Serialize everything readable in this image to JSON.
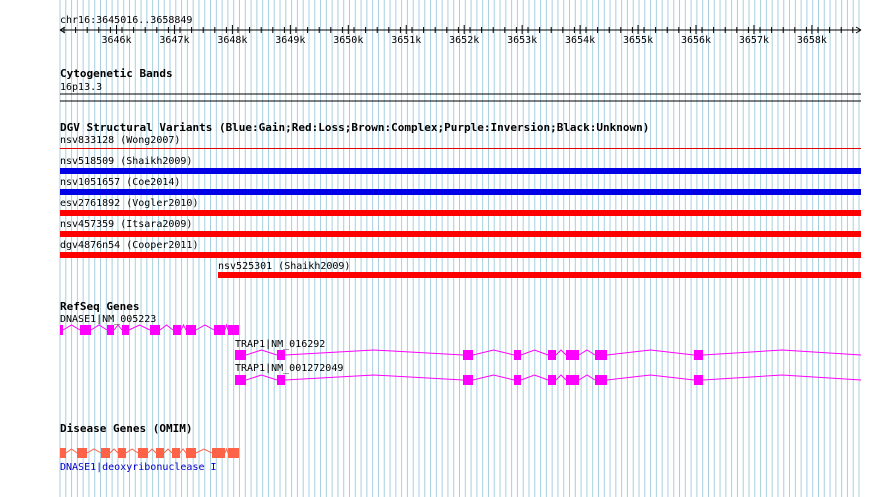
{
  "ruler": {
    "range_label": "chr16:3645016..3658849",
    "ticks": [
      "3646k",
      "3647k",
      "3648k",
      "3649k",
      "3650k",
      "3651k",
      "3652k",
      "3653k",
      "3654k",
      "3655k",
      "3656k",
      "3657k",
      "3658k"
    ]
  },
  "cytoband": {
    "title": "Cytogenetic Bands",
    "band": "16p13.3"
  },
  "dgv": {
    "title": "DGV Structural Variants (Blue:Gain;Red:Loss;Brown:Complex;Purple:Inversion;Black:Unknown)",
    "variants": [
      {
        "label": "nsv833128 (Wong2007)",
        "type": "Loss",
        "color": "#e00000"
      },
      {
        "label": "nsv518509 (Shaikh2009)",
        "type": "Gain",
        "color": "#0000e6"
      },
      {
        "label": "nsv1051657 (Coe2014)",
        "type": "Gain",
        "color": "#0000e6"
      },
      {
        "label": "esv2761892 (Vogler2010)",
        "type": "Loss",
        "color": "#ff0000"
      },
      {
        "label": "nsv457359 (Itsara2009)",
        "type": "Loss",
        "color": "#ff0000"
      },
      {
        "label": "dgv4876n54 (Cooper2011)",
        "type": "Loss",
        "color": "#ff0000"
      },
      {
        "label": "nsv525301 (Shaikh2009)",
        "type": "Loss",
        "color": "#ff0000"
      }
    ]
  },
  "refseq": {
    "title": "RefSeq Genes",
    "color": "#ff00ff",
    "genes": [
      {
        "label": "DNASE1|NM_005223"
      },
      {
        "label": "TRAP1|NM_016292"
      },
      {
        "label": "TRAP1|NM_001272049"
      }
    ]
  },
  "omim": {
    "title": "Disease Genes (OMIM)",
    "color": "#ff6347",
    "gene_label": "DNASE1|deoxyribonuclease I",
    "label_color": "#0000cc"
  },
  "colors": {
    "grid": "#a8cfe0",
    "track_border": "#000000"
  }
}
